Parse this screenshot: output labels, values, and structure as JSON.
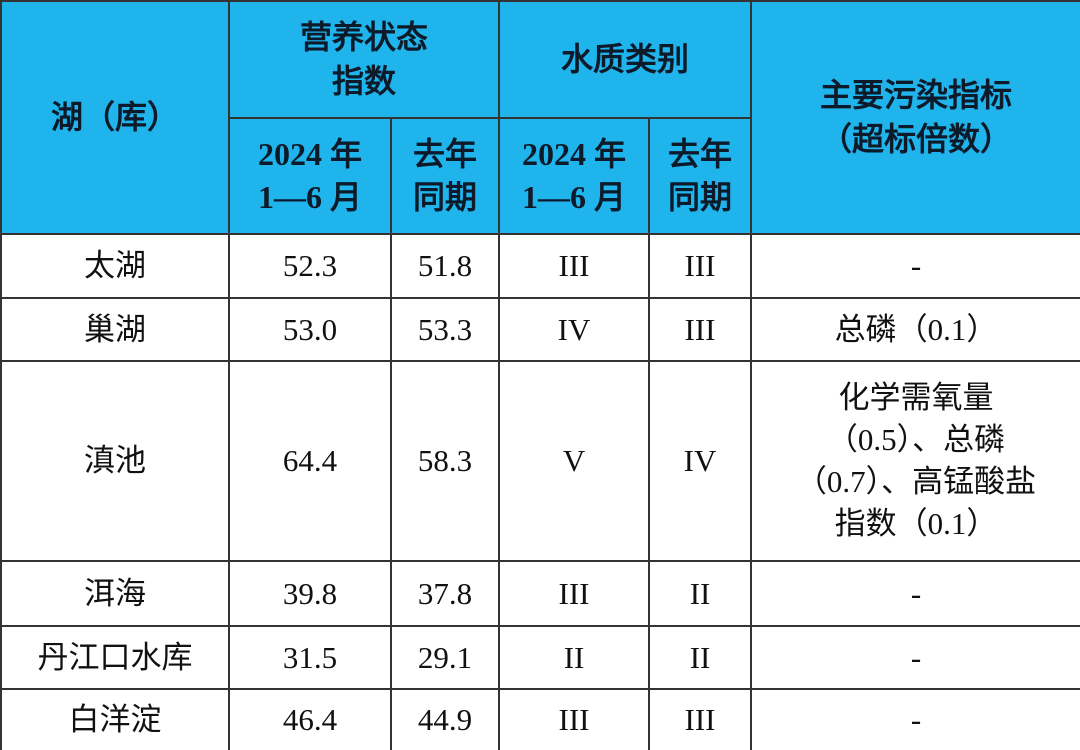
{
  "table": {
    "header": {
      "lake": "湖（库）",
      "trophic": "营养状态\n指数",
      "quality": "水质类别",
      "pollutant": "主要污染指标\n（超标倍数）",
      "current": "2024 年\n1—6 月",
      "last": "去年\n同期"
    },
    "rows": [
      [
        "太湖",
        "52.3",
        "51.8",
        "III",
        "III",
        "-"
      ],
      [
        "巢湖",
        "53.0",
        "53.3",
        "IV",
        "III",
        "总磷（0.1）"
      ],
      [
        "滇池",
        "64.4",
        "58.3",
        "V",
        "IV",
        "化学需氧量\n（0.5）、总磷\n（0.7）、高锰酸盐\n指数（0.1）"
      ],
      [
        "洱海",
        "39.8",
        "37.8",
        "III",
        "II",
        "-"
      ],
      [
        "丹江口水库",
        "31.5",
        "29.1",
        "II",
        "II",
        "-"
      ],
      [
        "白洋淀",
        "46.4",
        "44.9",
        "III",
        "III",
        "-"
      ]
    ]
  }
}
